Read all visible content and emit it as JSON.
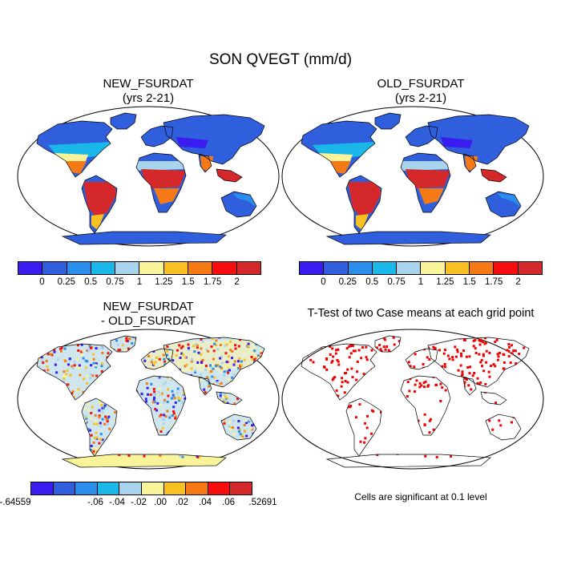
{
  "title": "SON QVEGT (mm/d)",
  "panels": {
    "new": {
      "title_line1": "NEW_FSURDAT",
      "title_line2": "(yrs 2-21)"
    },
    "old": {
      "title_line1": "OLD_FSURDAT",
      "title_line2": "(yrs 2-21)"
    },
    "diff": {
      "title_line1": "NEW_FSURDAT",
      "title_line2": "- OLD_FSURDAT"
    },
    "ttest": {
      "title": "T-Test of two Case means at each grid point",
      "note": "Cells are significant at 0.1 level"
    }
  },
  "colorbars": {
    "abs": {
      "colors": [
        "#3a1cf0",
        "#2f5fdc",
        "#2a8fec",
        "#1ab8ea",
        "#a9d4ee",
        "#f9f49a",
        "#f8c020",
        "#f57a16",
        "#f60d0d",
        "#d4282a"
      ],
      "labels": [
        "0",
        "0.25",
        "0.5",
        "0.75",
        "1",
        "1.25",
        "1.5",
        "1.75",
        "2"
      ]
    },
    "diff": {
      "colors": [
        "#3a1cf0",
        "#2f5fdc",
        "#2a8fec",
        "#1ab8ea",
        "#a9d4ee",
        "#f9f49a",
        "#f8c020",
        "#f57a16",
        "#f60d0d",
        "#d4282a"
      ],
      "labels": [
        "-.64559",
        "-.06",
        "-.04",
        "-.02",
        ".00",
        ".02",
        ".04",
        ".06",
        ".52691"
      ]
    }
  }
}
